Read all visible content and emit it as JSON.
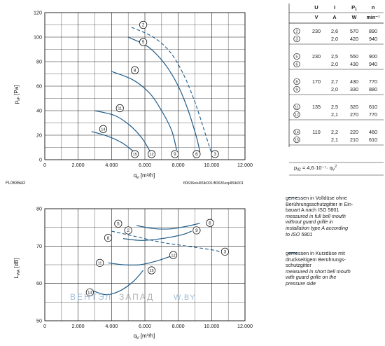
{
  "colors": {
    "curve": "#1f5c8a",
    "axis": "#1a1a1a",
    "grid": "#1a1a1a",
    "watermark": "#7fa8cc"
  },
  "top_chart": {
    "ylabel_main": "p",
    "ylabel_sub": "sF",
    "ylabel_unit": "[Pa]",
    "xlabel_main": "q",
    "xlabel_sub": "V",
    "xlabel_unit": "[m³/h]",
    "figure_code": "FL0636el2",
    "file_ref": "fl0636ek4l5lk001/fl0636eq4l5lk001"
  },
  "bottom_chart": {
    "ylabel_main": "L",
    "ylabel_sub": "WA",
    "ylabel_unit": "[dB]",
    "xlabel_main": "q",
    "xlabel_sub": "V",
    "xlabel_unit": "[m³/h]"
  },
  "chart_data": [
    {
      "type": "line",
      "xlim": [
        0,
        12000
      ],
      "ylim": [
        0,
        120
      ],
      "x_ticks": [
        0,
        2000,
        4000,
        6000,
        8000,
        10000,
        12000
      ],
      "x_tick_labels": [
        "0",
        "2.000",
        "4.000",
        "6.000",
        "8.000",
        "10.000",
        "12.000"
      ],
      "y_ticks": [
        0,
        20,
        40,
        60,
        80,
        100,
        120
      ],
      "y_tick_labels": [
        "0",
        "20",
        "40",
        "60",
        "80",
        "100",
        "120"
      ],
      "grid": true,
      "series": [
        {
          "marker": "2",
          "style": "dashed",
          "x": [
            5200,
            6500,
            7500,
            8300,
            9000,
            9600,
            10000
          ],
          "y": [
            108,
            100,
            88,
            70,
            47,
            22,
            5
          ],
          "end_label": "3",
          "end_x": 10200,
          "end_y": 2
        },
        {
          "marker": "5",
          "style": "solid",
          "x": [
            5000,
            6200,
            7200,
            8000,
            8600,
            9100,
            9300
          ],
          "y": [
            100,
            92,
            78,
            60,
            40,
            18,
            6
          ],
          "end_label": "6",
          "end_x": 9100,
          "end_y": 2
        },
        {
          "marker": "8",
          "style": "solid",
          "x": [
            4000,
            5300,
            6300,
            7000,
            7600,
            7900
          ],
          "y": [
            72,
            65,
            54,
            40,
            24,
            8
          ],
          "end_label": "9",
          "end_x": 7800,
          "end_y": 2
        },
        {
          "marker": "11",
          "style": "solid",
          "x": [
            3000,
            4200,
            5100,
            5800,
            6300
          ],
          "y": [
            40,
            36,
            28,
            18,
            7
          ],
          "end_label": "12",
          "end_x": 6400,
          "end_y": 2
        },
        {
          "marker": "14",
          "style": "solid",
          "x": [
            2800,
            3800,
            4600,
            5200,
            5500
          ],
          "y": [
            23,
            19,
            14,
            8,
            4
          ],
          "end_label": "15",
          "end_x": 5400,
          "end_y": 2
        }
      ],
      "marker_positions": [
        {
          "label": "2",
          "x": 5900,
          "y": 110
        },
        {
          "label": "5",
          "x": 5900,
          "y": 96
        },
        {
          "label": "8",
          "x": 5400,
          "y": 73
        },
        {
          "label": "11",
          "x": 4500,
          "y": 42
        },
        {
          "label": "14",
          "x": 3500,
          "y": 25
        }
      ]
    },
    {
      "type": "line",
      "xlim": [
        0,
        12000
      ],
      "ylim": [
        50,
        80
      ],
      "x_ticks": [
        0,
        2000,
        4000,
        6000,
        8000,
        10000,
        12000
      ],
      "x_tick_labels": [
        "0",
        "2.000",
        "4.000",
        "6.000",
        "8.000",
        "10.000",
        "12.000"
      ],
      "y_ticks": [
        50,
        60,
        70,
        80
      ],
      "y_tick_labels": [
        "50",
        "60",
        "70",
        "80"
      ],
      "grid": true,
      "series": [
        {
          "marker": "2",
          "style": "dashed",
          "x": [
            4000,
            5500,
            7000,
            8500,
            10000,
            10500
          ],
          "y": [
            74,
            72.5,
            71,
            70,
            69,
            68.5
          ],
          "end_label": "3"
        },
        {
          "marker": "5",
          "style": "solid",
          "x": [
            5500,
            6500,
            7500,
            8500,
            9300
          ],
          "y": [
            75.5,
            74.7,
            74.6,
            75.3,
            76.1
          ],
          "end_label": "6"
        },
        {
          "marker": "8",
          "style": "solid",
          "x": [
            4700,
            5800,
            7000,
            8200,
            8800
          ],
          "y": [
            72,
            71.5,
            72,
            73,
            74
          ],
          "end_label": "9"
        },
        {
          "marker": "11",
          "style": "solid",
          "x": [
            3800,
            4700,
            5700,
            6700,
            7700
          ],
          "y": [
            65.5,
            65,
            65,
            66,
            67.5
          ],
          "end_label": "12"
        },
        {
          "marker": "14",
          "style": "solid",
          "x": [
            2900,
            3700,
            4500,
            5300,
            5900
          ],
          "y": [
            58,
            57,
            58,
            60.5,
            63.5
          ],
          "end_label": "15"
        }
      ],
      "marker_positions": [
        {
          "label": "2",
          "x": 5000,
          "y": 74.2
        },
        {
          "label": "3",
          "x": 10800,
          "y": 68.5
        },
        {
          "label": "5",
          "x": 4400,
          "y": 76
        },
        {
          "label": "6",
          "x": 9900,
          "y": 76.2
        },
        {
          "label": "8",
          "x": 3800,
          "y": 72.2
        },
        {
          "label": "9",
          "x": 9100,
          "y": 74.2
        },
        {
          "label": "11",
          "x": 3300,
          "y": 65.5
        },
        {
          "label": "12",
          "x": 7700,
          "y": 67.6
        },
        {
          "label": "14",
          "x": 2700,
          "y": 57.6
        },
        {
          "label": "15",
          "x": 6400,
          "y": 63.5
        }
      ]
    }
  ],
  "table": {
    "headers": [
      "U",
      "I",
      "P",
      "n"
    ],
    "header_subs": [
      "",
      "",
      "1",
      ""
    ],
    "units": [
      "V",
      "A",
      "W",
      "min⁻¹"
    ],
    "groups": [
      {
        "rows": [
          {
            "marker": "2",
            "U": "230",
            "I": "2,6",
            "P": "570",
            "n": "890"
          },
          {
            "marker": "3",
            "U": "",
            "I": "2,0",
            "P": "420",
            "n": "940"
          }
        ]
      },
      {
        "rows": [
          {
            "marker": "5",
            "U": "230",
            "I": "2,5",
            "P": "550",
            "n": "900"
          },
          {
            "marker": "6",
            "U": "",
            "I": "2,0",
            "P": "430",
            "n": "940"
          }
        ]
      },
      {
        "rows": [
          {
            "marker": "8",
            "U": "170",
            "I": "2,7",
            "P": "430",
            "n": "770"
          },
          {
            "marker": "9",
            "U": "",
            "I": "2,0",
            "P": "330",
            "n": "880"
          }
        ]
      },
      {
        "rows": [
          {
            "marker": "11",
            "U": "135",
            "I": "2,5",
            "P": "320",
            "n": "610"
          },
          {
            "marker": "12",
            "U": "",
            "I": "2,1",
            "P": "270",
            "n": "770"
          }
        ]
      },
      {
        "rows": [
          {
            "marker": "14",
            "U": "110",
            "I": "2,2",
            "P": "220",
            "n": "460"
          },
          {
            "marker": "15",
            "U": "",
            "I": "2,1",
            "P": "210",
            "n": "610"
          }
        ]
      }
    ],
    "formula": "p",
    "formula_sub": "d2",
    "formula_rest": " = 4,6·10⁻⁷· q",
    "formula_rest_sub": "V",
    "formula_rest_sup": "2"
  },
  "legend": {
    "dashed_de": [
      "gemessen in Volldüse ohne",
      "Berührungsschutzgitter in Ein-",
      "bauart A nach ISO 5801"
    ],
    "dashed_en": [
      "measured in full bell mouth",
      "without guard grille in",
      "installation type A according",
      "to ISO 5801"
    ],
    "solid_de": [
      "gemessen in Kurzdüse mit",
      "druckseitigem Berührungs-",
      "schutzgitter"
    ],
    "solid_en": [
      "measured in short bell mouth",
      "with guard grille on the",
      "pressure side"
    ]
  },
  "watermark": {
    "part1": "ВЕНТЭЛ",
    "part2": "ЗАПАД",
    "part3": "W.BY"
  }
}
